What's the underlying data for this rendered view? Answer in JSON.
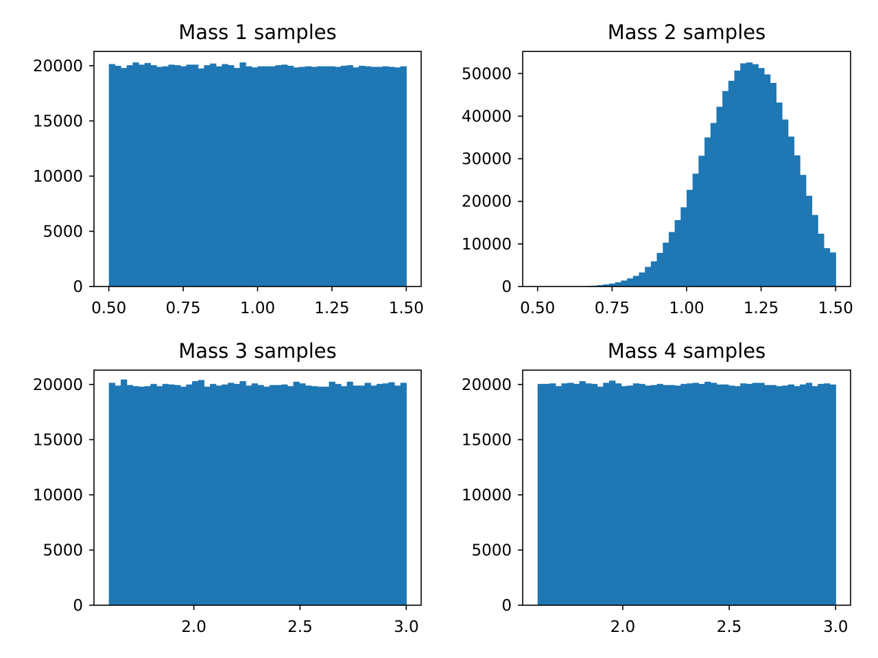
{
  "bar_color": "#1f77b4",
  "chart_data": [
    {
      "type": "bar",
      "title": "Mass 1 samples",
      "xlabel": "",
      "ylabel": "",
      "xlim": [
        0.45,
        1.55
      ],
      "ylim": [
        0,
        21300
      ],
      "bin_range": [
        0.5,
        1.5
      ],
      "xticks": [
        0.5,
        0.75,
        1.0,
        1.25,
        1.5
      ],
      "xtick_labels": [
        "0.50",
        "0.75",
        "1.00",
        "1.25",
        "1.50"
      ],
      "yticks": [
        0,
        5000,
        10000,
        15000,
        20000
      ],
      "ytick_labels": [
        "0",
        "5000",
        "10000",
        "15000",
        "20000"
      ],
      "values": [
        20150,
        20000,
        19800,
        20050,
        20300,
        20100,
        20250,
        20050,
        19900,
        19950,
        20100,
        20050,
        19950,
        20100,
        20100,
        19750,
        20050,
        20200,
        19950,
        20150,
        20050,
        19800,
        20300,
        19950,
        19850,
        19950,
        19950,
        19950,
        20050,
        20100,
        20000,
        19850,
        19900,
        19950,
        19900,
        19950,
        19950,
        19950,
        19900,
        20000,
        20050,
        19850,
        20000,
        19950,
        19900,
        19900,
        19950,
        19900,
        19850,
        19950
      ]
    },
    {
      "type": "bar",
      "title": "Mass 2 samples",
      "xlabel": "",
      "ylabel": "",
      "xlim": [
        0.45,
        1.55
      ],
      "ylim": [
        0,
        55200
      ],
      "bin_range": [
        0.5,
        1.5
      ],
      "xticks": [
        0.5,
        0.75,
        1.0,
        1.25,
        1.5
      ],
      "xtick_labels": [
        "0.50",
        "0.75",
        "1.00",
        "1.25",
        "1.50"
      ],
      "yticks": [
        0,
        10000,
        20000,
        30000,
        40000,
        50000
      ],
      "ytick_labels": [
        "0",
        "10000",
        "20000",
        "30000",
        "40000",
        "50000"
      ],
      "values": [
        0,
        0,
        0,
        5,
        10,
        20,
        40,
        70,
        120,
        200,
        330,
        500,
        700,
        1000,
        1400,
        1900,
        2500,
        3300,
        4600,
        5900,
        7900,
        10300,
        12800,
        15600,
        18600,
        22700,
        26500,
        30700,
        35000,
        38400,
        42200,
        45900,
        48300,
        50700,
        52400,
        52600,
        52200,
        51300,
        49800,
        47800,
        43200,
        39200,
        35200,
        30800,
        26200,
        21300,
        16800,
        12400,
        9000,
        8000
      ]
    },
    {
      "type": "bar",
      "title": "Mass 3 samples",
      "xlabel": "",
      "ylabel": "",
      "xlim": [
        1.53,
        3.07
      ],
      "ylim": [
        0,
        21300
      ],
      "bin_range": [
        1.6,
        3.0
      ],
      "xticks": [
        2.0,
        2.5,
        3.0
      ],
      "xtick_labels": [
        "2.0",
        "2.5",
        "3.0"
      ],
      "yticks": [
        0,
        5000,
        10000,
        15000,
        20000
      ],
      "ytick_labels": [
        "0",
        "5000",
        "10000",
        "15000",
        "20000"
      ],
      "values": [
        20150,
        19900,
        20450,
        19950,
        19850,
        19800,
        19850,
        20050,
        19850,
        20050,
        20000,
        19950,
        19800,
        20000,
        20300,
        20400,
        19800,
        20050,
        19900,
        20000,
        20150,
        20050,
        20300,
        19900,
        20100,
        19950,
        19800,
        19950,
        19950,
        20000,
        19850,
        20250,
        20100,
        19900,
        19850,
        19800,
        19800,
        20250,
        20050,
        19850,
        20250,
        19900,
        19900,
        20150,
        19900,
        20050,
        20100,
        20200,
        19900,
        20150
      ]
    },
    {
      "type": "bar",
      "title": "Mass 4 samples",
      "xlabel": "",
      "ylabel": "",
      "xlim": [
        1.53,
        3.07
      ],
      "ylim": [
        0,
        21300
      ],
      "bin_range": [
        1.6,
        3.0
      ],
      "xticks": [
        2.0,
        2.5,
        3.0
      ],
      "xtick_labels": [
        "2.0",
        "2.5",
        "3.0"
      ],
      "yticks": [
        0,
        5000,
        10000,
        15000,
        20000
      ],
      "ytick_labels": [
        "0",
        "5000",
        "10000",
        "15000",
        "20000"
      ],
      "values": [
        20050,
        20050,
        20100,
        19850,
        20100,
        20150,
        20050,
        20300,
        20100,
        20050,
        19800,
        20150,
        20350,
        20100,
        19850,
        19900,
        20100,
        20050,
        19900,
        19950,
        20050,
        19950,
        19950,
        19900,
        20050,
        20100,
        20150,
        20050,
        20250,
        20150,
        20000,
        20000,
        19900,
        19850,
        20100,
        20050,
        20150,
        20150,
        19950,
        19950,
        19850,
        19900,
        20000,
        19850,
        20000,
        20150,
        19850,
        20050,
        20100,
        20000
      ]
    }
  ]
}
